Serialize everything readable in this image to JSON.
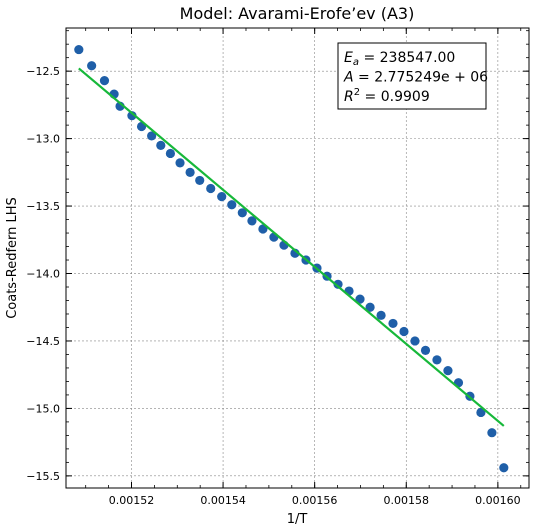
{
  "chart_data": {
    "type": "scatter",
    "title": "Model: Avarami-Erofe’ev (A3)",
    "xlabel": "1/T",
    "ylabel": "Coats-Redfern LHS",
    "xlim": [
      0.0015057,
      0.0016068
    ],
    "ylim": [
      -15.59,
      -12.18
    ],
    "xticks": [
      0.00152,
      0.00154,
      0.00156,
      0.00158,
      0.0016
    ],
    "xtick_labels": [
      "0.00152",
      "0.00154",
      "0.00156",
      "0.00158",
      "0.00160"
    ],
    "yticks": [
      -12.5,
      -13.0,
      -13.5,
      -14.0,
      -14.5,
      -15.0,
      -15.5
    ],
    "ytick_labels": [
      "−12.5",
      "−13.0",
      "−13.5",
      "−14.0",
      "−14.5",
      "−15.0",
      "−15.5"
    ],
    "grid": true,
    "colors": {
      "points": "#1f5fa8",
      "fit": "#17b83a",
      "grid": "#888888"
    },
    "points": [
      [
        0.0015085,
        -12.34
      ],
      [
        0.0015113,
        -12.46
      ],
      [
        0.0015141,
        -12.57
      ],
      [
        0.0015162,
        -12.67
      ],
      [
        0.0015175,
        -12.76
      ],
      [
        0.0015201,
        -12.83
      ],
      [
        0.0015222,
        -12.91
      ],
      [
        0.0015244,
        -12.98
      ],
      [
        0.0015264,
        -13.05
      ],
      [
        0.0015285,
        -13.11
      ],
      [
        0.0015306,
        -13.18
      ],
      [
        0.0015328,
        -13.25
      ],
      [
        0.0015349,
        -13.31
      ],
      [
        0.0015373,
        -13.37
      ],
      [
        0.0015397,
        -13.43
      ],
      [
        0.0015419,
        -13.49
      ],
      [
        0.0015442,
        -13.55
      ],
      [
        0.0015463,
        -13.61
      ],
      [
        0.0015487,
        -13.67
      ],
      [
        0.0015511,
        -13.73
      ],
      [
        0.0015533,
        -13.79
      ],
      [
        0.0015557,
        -13.85
      ],
      [
        0.0015581,
        -13.9
      ],
      [
        0.0015605,
        -13.96
      ],
      [
        0.0015627,
        -14.02
      ],
      [
        0.0015651,
        -14.08
      ],
      [
        0.0015675,
        -14.13
      ],
      [
        0.0015699,
        -14.19
      ],
      [
        0.0015721,
        -14.25
      ],
      [
        0.0015745,
        -14.31
      ],
      [
        0.0015771,
        -14.37
      ],
      [
        0.0015795,
        -14.43
      ],
      [
        0.0015819,
        -14.5
      ],
      [
        0.0015842,
        -14.57
      ],
      [
        0.0015867,
        -14.64
      ],
      [
        0.0015891,
        -14.72
      ],
      [
        0.0015914,
        -14.81
      ],
      [
        0.0015939,
        -14.91
      ],
      [
        0.0015963,
        -15.03
      ],
      [
        0.0015987,
        -15.18
      ],
      [
        0.0016013,
        -15.44
      ]
    ],
    "fit_line": {
      "x": [
        0.0015085,
        0.0016013
      ],
      "y": [
        -12.48,
        -15.13
      ]
    },
    "legend": {
      "position": "top-right",
      "lines": [
        {
          "sym": "E",
          "sub": "a",
          "sup": "",
          "rest": " = 238547.00"
        },
        {
          "sym": "A",
          "sub": "",
          "sup": "",
          "rest": " = 2.775249e + 06"
        },
        {
          "sym": "R",
          "sub": "",
          "sup": "2",
          "rest": " = 0.9909"
        }
      ]
    }
  }
}
